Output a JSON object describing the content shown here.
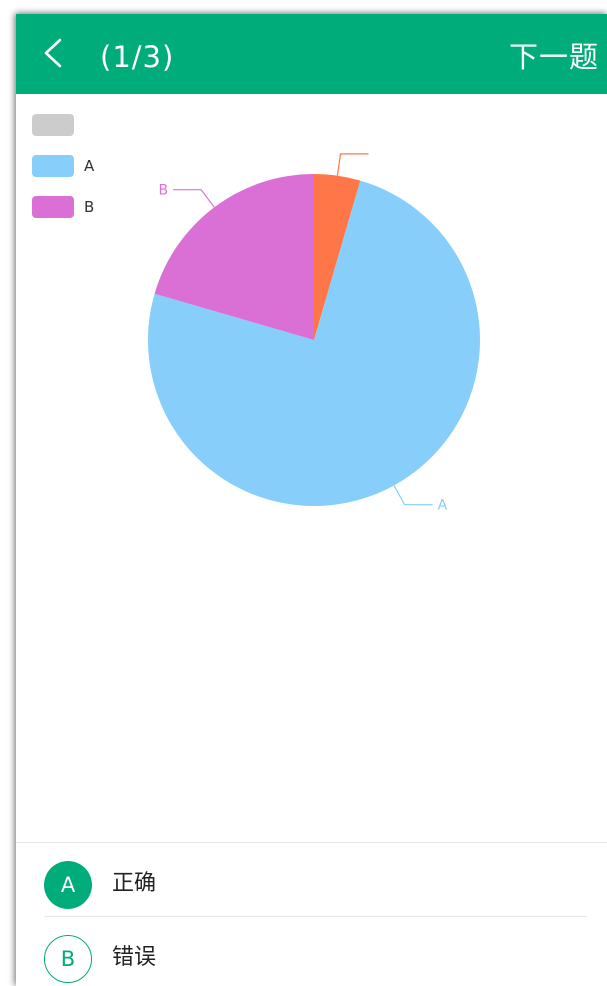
{
  "header": {
    "back_icon": "chevron-left-icon",
    "counter": "(1/3)",
    "next_label": "下一题",
    "bg_color": "#00ac7a"
  },
  "chart_data": {
    "type": "pie",
    "slices": [
      {
        "label": "",
        "value": 4.5,
        "color": "#ff7748"
      },
      {
        "label": "A",
        "value": 75.0,
        "color": "#87cefa"
      },
      {
        "label": "B",
        "value": 20.5,
        "color": "#da70d6"
      }
    ],
    "legend": {
      "position": "top-left",
      "entries": [
        {
          "label": "",
          "color": "#cccccc"
        },
        {
          "label": "A",
          "color": "#87cefa"
        },
        {
          "label": "B",
          "color": "#da70d6"
        }
      ]
    }
  },
  "options": [
    {
      "letter": "A",
      "text": "正确",
      "selected": true
    },
    {
      "letter": "B",
      "text": "错误",
      "selected": false
    }
  ],
  "accent_color": "#00ac7a"
}
